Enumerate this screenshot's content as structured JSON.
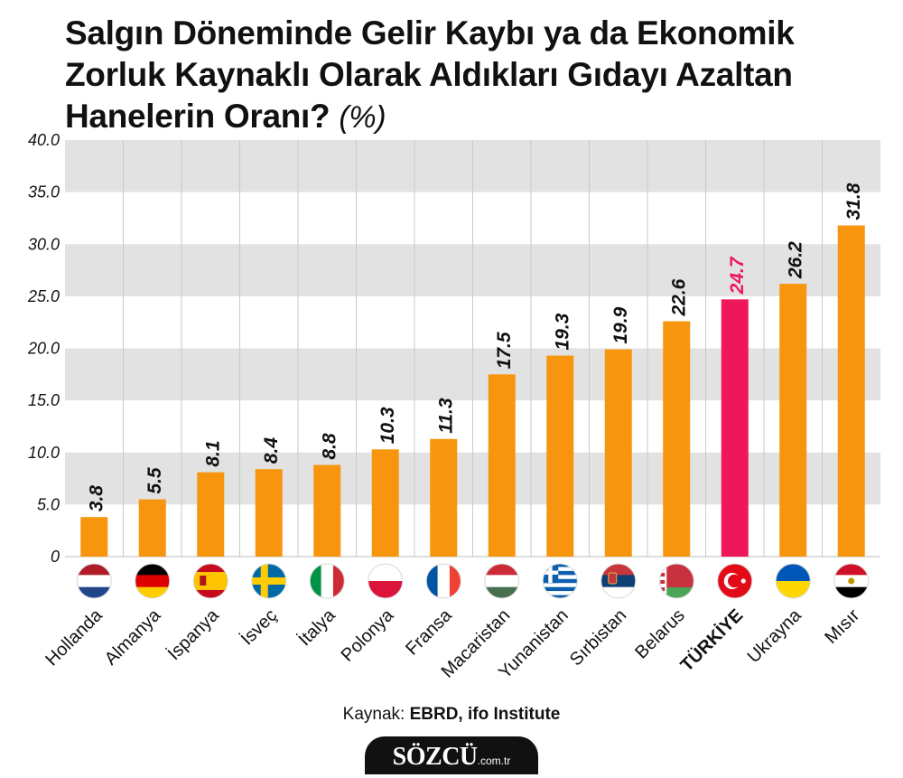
{
  "title": {
    "text": "Salgın Döneminde Gelir Kaybı ya da Ekonomik Zorluk Kaynaklı Olarak Aldıkları Gıdayı Azaltan Hanelerin Oranı?",
    "unit": "(%)"
  },
  "source": {
    "label": "Kaynak:",
    "value": "EBRD, ifo Institute"
  },
  "logo": {
    "brand": "SÖZCÜ",
    "tld": ".com.tr"
  },
  "colors": {
    "bar": "#F7960E",
    "highlight": "#F0165A",
    "band": "#E2E2E2"
  },
  "chart_data": {
    "type": "bar",
    "title": "Salgın Döneminde Gelir Kaybı ya da Ekonomik Zorluk Kaynaklı Olarak Aldıkları Gıdayı Azaltan Hanelerin Oranı? (%)",
    "categories": [
      "Hollanda",
      "Almanya",
      "İspanya",
      "İsveç",
      "İtalya",
      "Polonya",
      "Fransa",
      "Macaristan",
      "Yunanistan",
      "Sırbistan",
      "Belarus",
      "TÜRKİYE",
      "Ukrayna",
      "Mısır"
    ],
    "values": [
      3.8,
      5.5,
      8.1,
      8.4,
      8.8,
      10.3,
      11.3,
      17.5,
      19.3,
      19.9,
      22.6,
      24.7,
      26.2,
      31.8
    ],
    "value_labels": [
      "3.8",
      "5.5",
      "8.1",
      "8.4",
      "8.8",
      "10.3",
      "11.3",
      "17.5",
      "19.3",
      "19.9",
      "22.6",
      "24.7",
      "26.2",
      "31.8"
    ],
    "highlight": "TÜRKİYE",
    "flags": [
      "netherlands-flag",
      "germany-flag",
      "spain-flag",
      "sweden-flag",
      "italy-flag",
      "poland-flag",
      "france-flag",
      "hungary-flag",
      "greece-flag",
      "serbia-flag",
      "belarus-flag",
      "turkey-flag",
      "ukraine-flag",
      "egypt-flag"
    ],
    "ylim": [
      0,
      40
    ],
    "yticks": [
      "0",
      "5.0",
      "10.0",
      "15.0",
      "20.0",
      "25.0",
      "30.0",
      "35.0",
      "40.0"
    ],
    "grid": "alternating horizontal bands",
    "xlabel": "",
    "ylabel": ""
  }
}
